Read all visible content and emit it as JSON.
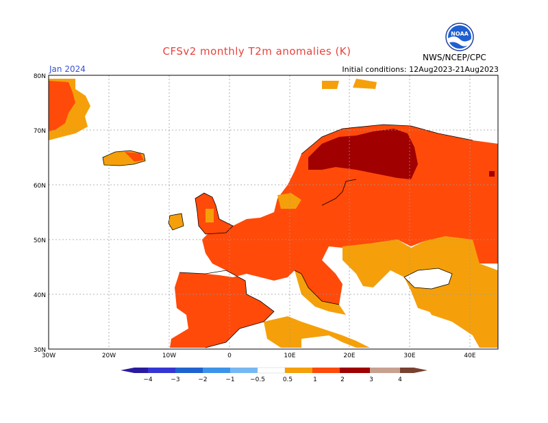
{
  "header": {
    "title": "CFSv2 monthly T2m anomalies (K)",
    "month": "Jan 2024",
    "initial_conditions": "Initial conditions: 12Aug2023-21Aug2023",
    "org": "NWS/NCEP/CPC",
    "logo_text": "NOAA"
  },
  "axes": {
    "lat_labels": [
      "80N",
      "70N",
      "60N",
      "50N",
      "40N",
      "30N"
    ],
    "lon_labels": [
      "30W",
      "20W",
      "10W",
      "0",
      "10E",
      "20E",
      "30E",
      "40E"
    ]
  },
  "colorbar": {
    "labels": [
      "−4",
      "−3",
      "−2",
      "−1",
      "−0.5",
      "0.5",
      "1",
      "2",
      "3",
      "4"
    ],
    "colors": [
      "#2a1b9e",
      "#3535d4",
      "#1f63d0",
      "#3c93e8",
      "#76b8f2",
      "#ffffff",
      "#f5a00a",
      "#ff4a0a",
      "#a00000",
      "#c8a090",
      "#7a4030"
    ]
  },
  "legend_colors": {
    "weak_warm": "#f5a00a",
    "warm": "#ff4a0a",
    "strong_warm": "#a00000",
    "land_outline": "#000000",
    "grid": "#999999"
  }
}
